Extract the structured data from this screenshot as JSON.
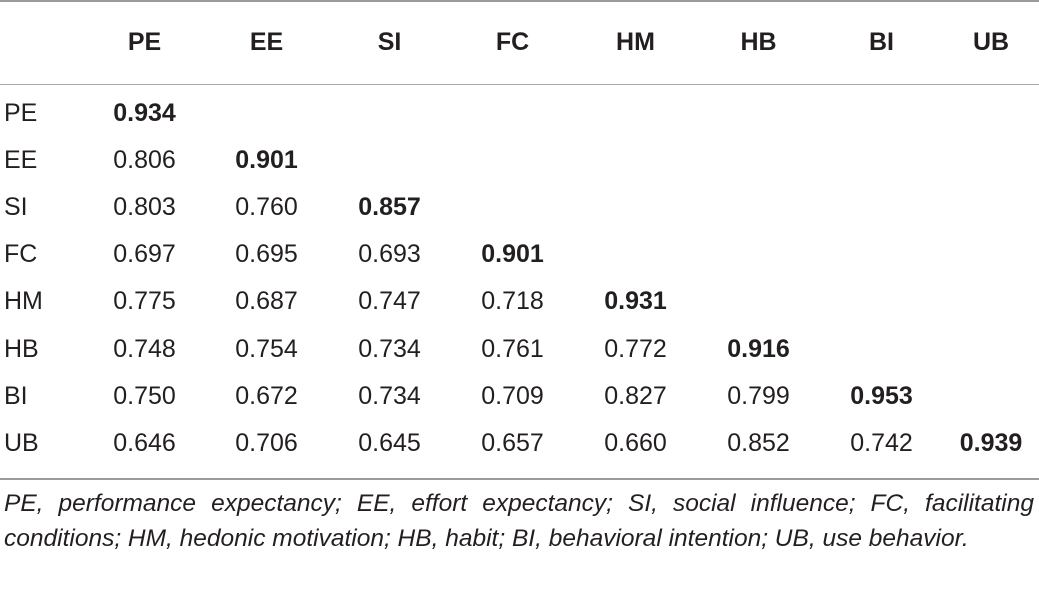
{
  "table": {
    "columns": [
      "",
      "PE",
      "EE",
      "SI",
      "FC",
      "HM",
      "HB",
      "BI",
      "UB"
    ],
    "rows": [
      {
        "label": "PE",
        "values": [
          "0.934",
          "",
          "",
          "",
          "",
          "",
          "",
          ""
        ]
      },
      {
        "label": "EE",
        "values": [
          "0.806",
          "0.901",
          "",
          "",
          "",
          "",
          "",
          ""
        ]
      },
      {
        "label": "SI",
        "values": [
          "0.803",
          "0.760",
          "0.857",
          "",
          "",
          "",
          "",
          ""
        ]
      },
      {
        "label": "FC",
        "values": [
          "0.697",
          "0.695",
          "0.693",
          "0.901",
          "",
          "",
          "",
          ""
        ]
      },
      {
        "label": "HM",
        "values": [
          "0.775",
          "0.687",
          "0.747",
          "0.718",
          "0.931",
          "",
          "",
          ""
        ]
      },
      {
        "label": "HB",
        "values": [
          "0.748",
          "0.754",
          "0.734",
          "0.761",
          "0.772",
          "0.916",
          "",
          ""
        ]
      },
      {
        "label": "BI",
        "values": [
          "0.750",
          "0.672",
          "0.734",
          "0.709",
          "0.827",
          "0.799",
          "0.953",
          ""
        ]
      },
      {
        "label": "UB",
        "values": [
          "0.646",
          "0.706",
          "0.645",
          "0.657",
          "0.660",
          "0.852",
          "0.742",
          "0.939"
        ]
      }
    ]
  },
  "footnote": "PE, performance expectancy; EE, effort expectancy; SI, social influence; FC, facilitating conditions; HM, hedonic motivation; HB, habit; BI, behavioral intention; UB, use behavior."
}
